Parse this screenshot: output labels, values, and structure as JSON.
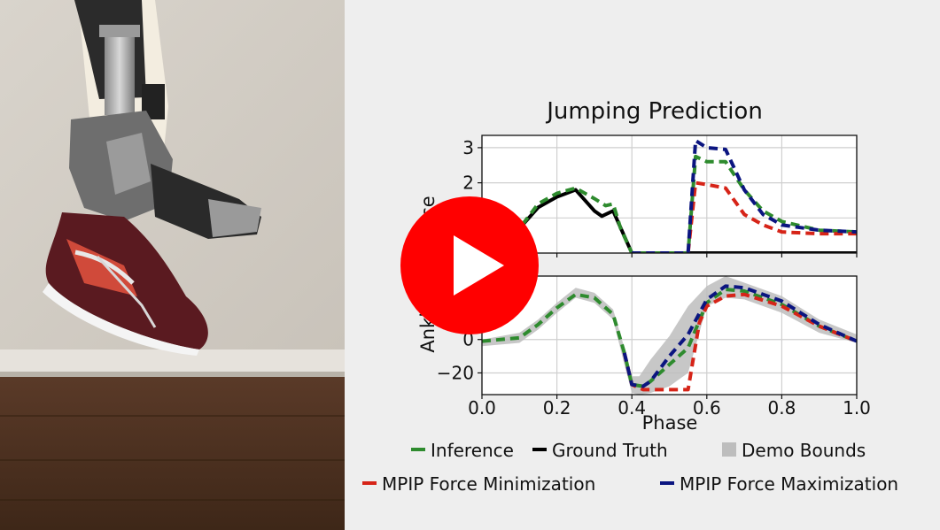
{
  "video": {
    "play_button_label": "Play",
    "colors": {
      "play_red": "#ff0000",
      "play_arrow": "#ffffff"
    }
  },
  "chart_data": {
    "type": "line",
    "title": "Jumping Prediction",
    "xlabel": "Phase",
    "ylabel": "Ankle Co… Force",
    "xlim": [
      0.0,
      1.0
    ],
    "x_ticks": [
      "0.0",
      "0.2",
      "0.4",
      "0.6",
      "0.8",
      "1.0"
    ],
    "grid": true,
    "legend_placement": "bottom",
    "legend": [
      "Inference",
      "Ground Truth",
      "Demo Bounds",
      "MPIP Force Minimization",
      "MPIP Force Maximization"
    ],
    "colors": {
      "Inference": "#2e8b2e",
      "Ground Truth": "#000000",
      "Demo Bounds": "#bdbdbd",
      "MPIP Force Minimization": "#d62418",
      "MPIP Force Maximization": "#0b1580"
    },
    "panels": [
      {
        "ylim": [
          0.0,
          3.35
        ],
        "y_ticks": [
          "1",
          "2",
          "3"
        ],
        "series": [
          {
            "name": "Ground Truth",
            "x": [
              0.0,
              0.1,
              0.15,
              0.2,
              0.25,
              0.3,
              0.32,
              0.35,
              0.4,
              0.45,
              0.5,
              0.55,
              0.6,
              0.7,
              0.8,
              0.9,
              1.0
            ],
            "y": [
              0.6,
              0.7,
              1.3,
              1.6,
              1.8,
              1.2,
              1.05,
              1.2,
              0.0,
              0.0,
              0.0,
              0.0,
              0.0,
              0.0,
              0.0,
              0.0,
              0.0
            ]
          },
          {
            "name": "Inference",
            "x": [
              0.0,
              0.1,
              0.15,
              0.2,
              0.25,
              0.3,
              0.33,
              0.35,
              0.37,
              0.4,
              0.45,
              0.5,
              0.55,
              0.57,
              0.6,
              0.65,
              0.7,
              0.75,
              0.8,
              0.9,
              1.0
            ],
            "y": [
              0.6,
              0.7,
              1.4,
              1.7,
              1.85,
              1.55,
              1.35,
              1.4,
              0.7,
              0.0,
              0.0,
              0.0,
              0.0,
              2.75,
              2.6,
              2.6,
              1.8,
              1.2,
              0.9,
              0.65,
              0.6
            ]
          },
          {
            "name": "MPIP Force Minimization",
            "x": [
              0.4,
              0.45,
              0.5,
              0.55,
              0.57,
              0.6,
              0.65,
              0.7,
              0.75,
              0.8,
              0.9,
              1.0
            ],
            "y": [
              0.0,
              0.0,
              0.0,
              0.0,
              2.0,
              1.95,
              1.85,
              1.1,
              0.8,
              0.6,
              0.55,
              0.55
            ]
          },
          {
            "name": "MPIP Force Maximization",
            "x": [
              0.4,
              0.45,
              0.5,
              0.55,
              0.57,
              0.6,
              0.65,
              0.7,
              0.75,
              0.8,
              0.9,
              1.0
            ],
            "y": [
              0.0,
              0.0,
              0.0,
              0.0,
              3.2,
              3.0,
              2.95,
              1.8,
              1.1,
              0.8,
              0.65,
              0.6
            ]
          }
        ]
      },
      {
        "ylim": [
          -33,
          38
        ],
        "y_ticks": [
          "-20",
          "0"
        ],
        "band": {
          "name": "Demo Bounds",
          "x": [
            0.0,
            0.1,
            0.15,
            0.2,
            0.25,
            0.3,
            0.35,
            0.38,
            0.4,
            0.42,
            0.45,
            0.5,
            0.55,
            0.6,
            0.65,
            0.7,
            0.8,
            0.9,
            1.0
          ],
          "upper": [
            0,
            4,
            12,
            22,
            31,
            28,
            18,
            -5,
            -22,
            -22,
            -12,
            2,
            20,
            32,
            38,
            34,
            26,
            12,
            3
          ],
          "lower": [
            -4,
            -2,
            6,
            16,
            25,
            22,
            12,
            -15,
            -32,
            -33,
            -32,
            -28,
            -20,
            20,
            25,
            24,
            16,
            4,
            -2
          ]
        },
        "series": [
          {
            "name": "Inference",
            "x": [
              0.0,
              0.1,
              0.15,
              0.2,
              0.25,
              0.3,
              0.35,
              0.38,
              0.4,
              0.43,
              0.45,
              0.5,
              0.55,
              0.6,
              0.65,
              0.7,
              0.8,
              0.9,
              1.0
            ],
            "y": [
              -1,
              1,
              9,
              19,
              27,
              25,
              15,
              -8,
              -27,
              -28,
              -25,
              -15,
              -5,
              22,
              30,
              29,
              21,
              8,
              -1
            ]
          },
          {
            "name": "MPIP Force Minimization",
            "x": [
              0.38,
              0.4,
              0.43,
              0.45,
              0.5,
              0.55,
              0.58,
              0.6,
              0.65,
              0.7,
              0.8,
              0.9,
              1.0
            ],
            "y": [
              -8,
              -27,
              -30,
              -30,
              -30,
              -30,
              10,
              20,
              26,
              27,
              20,
              8,
              -1
            ]
          },
          {
            "name": "MPIP Force Maximization",
            "x": [
              0.38,
              0.4,
              0.43,
              0.45,
              0.5,
              0.55,
              0.6,
              0.65,
              0.7,
              0.8,
              0.9,
              1.0
            ],
            "y": [
              -8,
              -27,
              -28,
              -25,
              -10,
              3,
              24,
              32,
              31,
              23,
              9,
              -1
            ]
          }
        ]
      }
    ]
  }
}
